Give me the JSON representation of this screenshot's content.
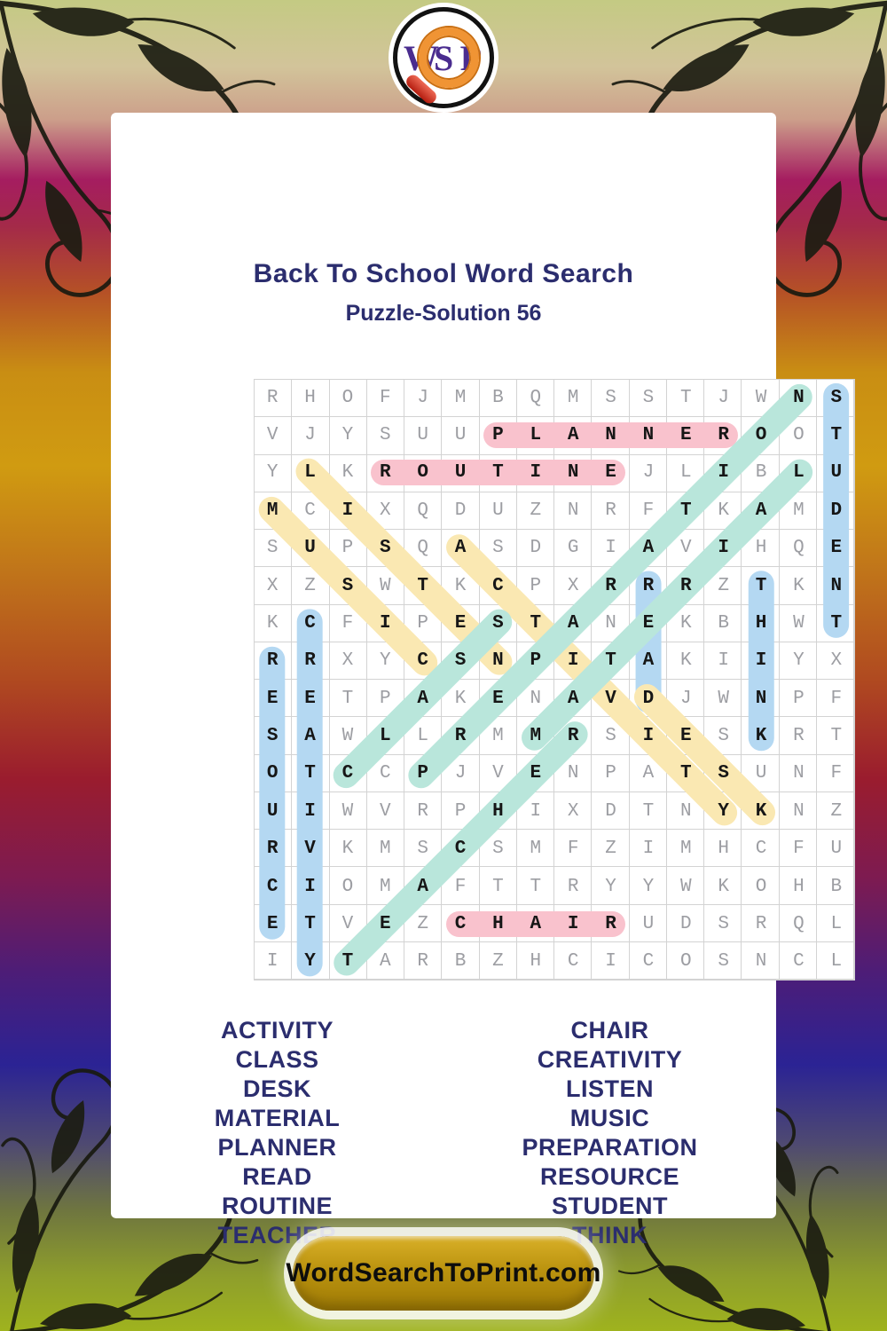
{
  "logo": {
    "letters": [
      "W",
      "S",
      "P"
    ]
  },
  "header": {
    "title": "Back To School Word Search",
    "subtitle": "Puzzle-Solution 56"
  },
  "grid": {
    "rows": [
      "RHOFJMBQMSSTJWNS",
      "VJYSUUPLANNEROOT",
      "YLKROUTINEJLIBLU",
      "MCIXQDUZNRFTKAMD",
      "SUPSQASDGIAVIHQE",
      "XZSWTKCPXRRRZTKN",
      "KCFIPESTANEKBHWT",
      "RRXYCSNPITAKIIYX",
      "EETPAKENAVDJWNPF",
      "SAWLLRMMRSIESKRT",
      "OTCCPJVENPATSUNF",
      "UIWVRPHIXDTNYKNZ",
      "RVKMSCSMFZIMHCFU",
      "CIOMAFTTRYYWKOHB",
      "ETVEZCHAIRUDSRQL",
      "IYTARBZHCICOSNCL"
    ],
    "placements": [
      {
        "word": "PLANNER",
        "row": 2,
        "col": 7,
        "dir": "E"
      },
      {
        "word": "ROUTINE",
        "row": 3,
        "col": 4,
        "dir": "E"
      },
      {
        "word": "CHAIR",
        "row": 15,
        "col": 6,
        "dir": "E"
      },
      {
        "word": "STUDENT",
        "row": 1,
        "col": 16,
        "dir": "S"
      },
      {
        "word": "THINK",
        "row": 6,
        "col": 14,
        "dir": "S"
      },
      {
        "word": "READ",
        "row": 6,
        "col": 11,
        "dir": "S"
      },
      {
        "word": "RESOURCE",
        "row": 8,
        "col": 1,
        "dir": "S"
      },
      {
        "word": "CREATIVITY",
        "row": 7,
        "col": 2,
        "dir": "S"
      },
      {
        "word": "MUSIC",
        "row": 4,
        "col": 1,
        "dir": "SE"
      },
      {
        "word": "LISTEN",
        "row": 3,
        "col": 2,
        "dir": "SE"
      },
      {
        "word": "ACTIVITY",
        "row": 5,
        "col": 6,
        "dir": "SE"
      },
      {
        "word": "DESK",
        "row": 9,
        "col": 11,
        "dir": "SE"
      },
      {
        "word": "CLASS",
        "row": 11,
        "col": 3,
        "dir": "NE"
      },
      {
        "word": "TEACHER",
        "row": 16,
        "col": 3,
        "dir": "NE"
      },
      {
        "word": "MATERIAL",
        "row": 10,
        "col": 8,
        "dir": "NE"
      },
      {
        "word": "PREPARATION",
        "row": 11,
        "col": 5,
        "dir": "NE"
      }
    ]
  },
  "word_list": {
    "left": [
      "ACTIVITY",
      "CLASS",
      "DESK",
      "MATERIAL",
      "PLANNER",
      "READ",
      "ROUTINE",
      "TEACHER"
    ],
    "right": [
      "CHAIR",
      "CREATIVITY",
      "LISTEN",
      "MUSIC",
      "PREPARATION",
      "RESOURCE",
      "STUDENT",
      "THINK"
    ]
  },
  "footer": {
    "site": "WordSearchToPrint.com"
  },
  "colors": {
    "horizontal": "#f9c2cd",
    "vertical": "#b4d8f2",
    "diag_down": "#fae8b2",
    "diag_up": "#b9e6db",
    "accent_navy": "#2b2d6e"
  }
}
